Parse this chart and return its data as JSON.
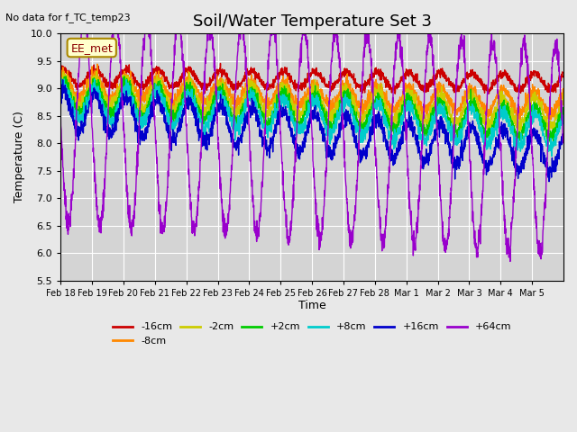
{
  "title": "Soil/Water Temperature Set 3",
  "xlabel": "Time",
  "ylabel": "Temperature (C)",
  "no_data_text": "No data for f_TC_temp23",
  "legend_label_text": "EE_met",
  "ylim": [
    5.5,
    10.0
  ],
  "yticks": [
    5.5,
    6.0,
    6.5,
    7.0,
    7.5,
    8.0,
    8.5,
    9.0,
    9.5,
    10.0
  ],
  "series": {
    "-16cm": {
      "color": "#cc0000",
      "base": 9.2,
      "amplitude": 0.15,
      "trend": -0.005,
      "noise": 0.04
    },
    "-8cm": {
      "color": "#ff8800",
      "base": 9.05,
      "amplitude": 0.2,
      "trend": -0.02,
      "noise": 0.06
    },
    "-2cm": {
      "color": "#cccc00",
      "base": 8.95,
      "amplitude": 0.25,
      "trend": -0.025,
      "noise": 0.06
    },
    "+2cm": {
      "color": "#00cc00",
      "base": 8.85,
      "amplitude": 0.28,
      "trend": -0.03,
      "noise": 0.06
    },
    "+8cm": {
      "color": "#00cccc",
      "base": 8.75,
      "amplitude": 0.3,
      "trend": -0.033,
      "noise": 0.07
    },
    "+16cm": {
      "color": "#0000cc",
      "base": 8.6,
      "amplitude": 0.35,
      "trend": -0.05,
      "noise": 0.08
    },
    "+64cm": {
      "color": "#9900cc",
      "base": 8.45,
      "amplitude": 1.9,
      "trend": -0.035,
      "noise": 0.1
    }
  },
  "x_tick_labels": [
    "Feb 18",
    "Feb 19",
    "Feb 20",
    "Feb 21",
    "Feb 22",
    "Feb 23",
    "Feb 24",
    "Feb 25",
    "Feb 26",
    "Feb 27",
    "Feb 28",
    "Mar 1",
    "Mar 2",
    "Mar 3",
    "Mar 4",
    "Mar 5"
  ],
  "bg_color": "#e8e8e8",
  "plot_bg_color": "#d4d4d4",
  "grid_color": "#ffffff",
  "legend_box_color": "#ffffcc",
  "legend_box_edge": "#aa8800"
}
